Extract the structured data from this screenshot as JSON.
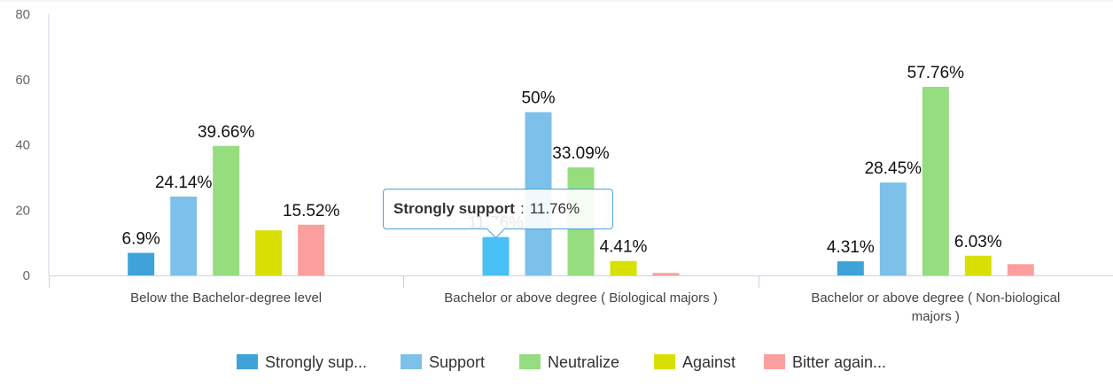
{
  "chart_data": {
    "type": "bar",
    "categories": [
      "Below the Bachelor-degree level",
      "Bachelor or above degree ( Biological majors )",
      "Bachelor or above degree ( Non-biological majors )"
    ],
    "category_label_lines": [
      [
        "Below the Bachelor-degree level"
      ],
      [
        "Bachelor or above degree ( Biological majors )"
      ],
      [
        "Bachelor or above degree ( Non-biological",
        "majors )"
      ]
    ],
    "series": [
      {
        "name": "Strongly support",
        "legend_label": "Strongly sup...",
        "color": "#3fa3d9",
        "values": [
          6.9,
          11.76,
          4.31
        ]
      },
      {
        "name": "Support",
        "legend_label": "Support",
        "color": "#7cc1ea",
        "values": [
          24.14,
          50,
          28.45
        ]
      },
      {
        "name": "Neutralize",
        "legend_label": "Neutralize",
        "color": "#95dd7e",
        "values": [
          39.66,
          33.09,
          57.76
        ]
      },
      {
        "name": "Against",
        "legend_label": "Against",
        "color": "#d9df00",
        "values": [
          13.79,
          4.41,
          6.03
        ]
      },
      {
        "name": "Bitter against",
        "legend_label": "Bitter again...",
        "color": "#fb9e9e",
        "values": [
          15.52,
          0.74,
          3.45
        ]
      }
    ],
    "data_labels": [
      [
        "6.9%",
        "11.76%",
        "4.31%"
      ],
      [
        "24.14%",
        "50%",
        "28.45%"
      ],
      [
        "39.66%",
        "33.09%",
        "57.76%"
      ],
      [
        "",
        "4.41%",
        "6.03%"
      ],
      [
        "15.52%",
        "",
        ""
      ]
    ],
    "ylim": [
      0,
      80
    ],
    "yticks": [
      0,
      20,
      40,
      60,
      80
    ],
    "grid": false,
    "legend_position": "bottom",
    "highlighted": {
      "series": 0,
      "category": 1,
      "color": "#49c0f5"
    }
  },
  "tooltip": {
    "name": "Strongly support",
    "separator": ":",
    "value": "11.76%"
  }
}
